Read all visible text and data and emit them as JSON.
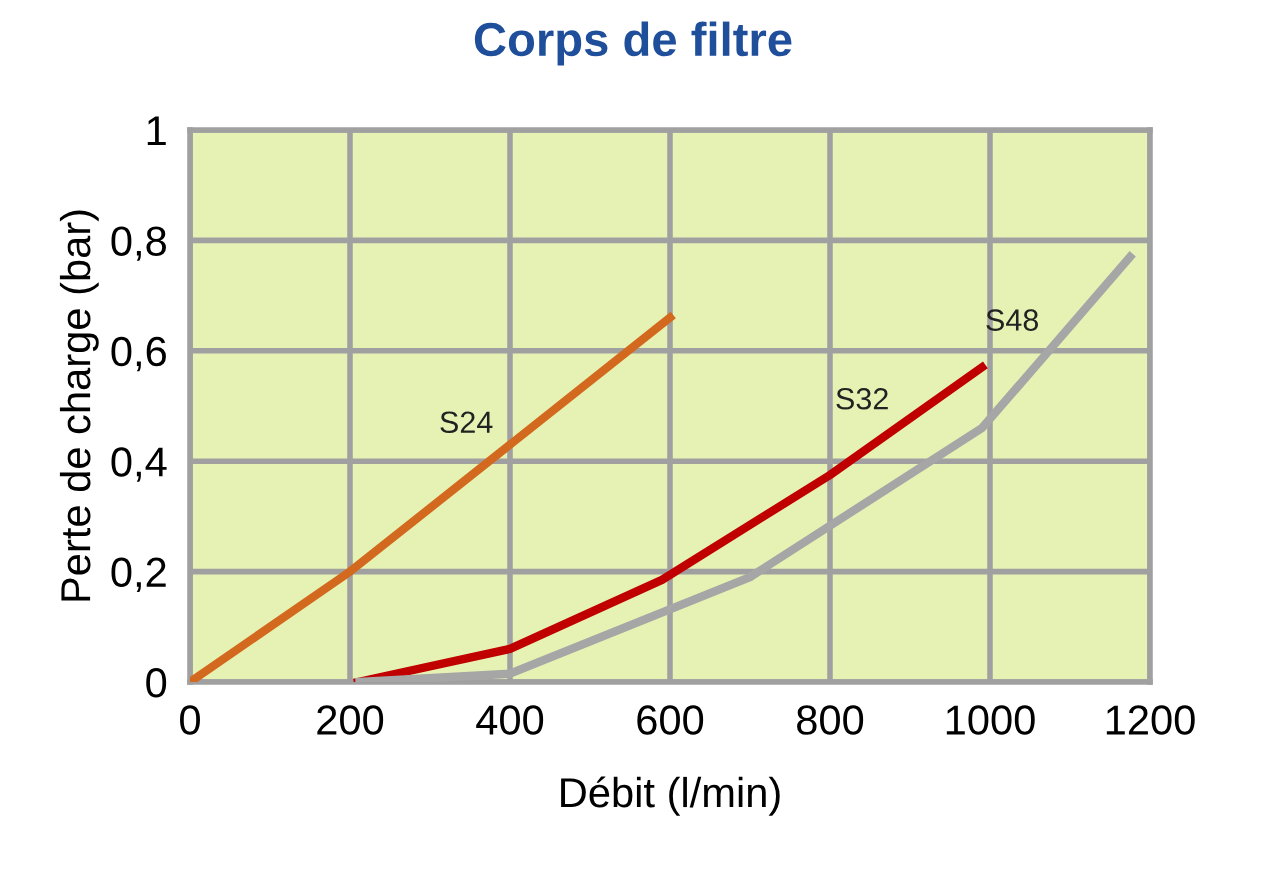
{
  "chart_data": {
    "type": "line",
    "title": "Corps de filtre",
    "xlabel": "Débit (l/min)",
    "ylabel": "Perte de charge (bar)",
    "series": [
      {
        "name": "S24",
        "color": "#d2691e",
        "x": [
          0,
          200,
          600
        ],
        "values": [
          0,
          0.2,
          0.66
        ]
      },
      {
        "name": "S32",
        "color": "#c00000",
        "x": [
          210,
          400,
          590,
          800,
          990
        ],
        "values": [
          0,
          0.06,
          0.185,
          0.375,
          0.57
        ]
      },
      {
        "name": "S48",
        "color": "#a6a6a6",
        "x": [
          212,
          400,
          700,
          990,
          1175
        ],
        "values": [
          0,
          0.015,
          0.19,
          0.46,
          0.77
        ]
      }
    ],
    "xlim": [
      0,
      1200
    ],
    "xticks": [
      0,
      200,
      400,
      600,
      800,
      1000,
      1200
    ],
    "ylim": [
      0,
      1
    ],
    "yticks": [
      0,
      {
        "value": 0.2,
        "label": "0,2"
      },
      {
        "value": 0.4,
        "label": "0,4"
      },
      {
        "value": 0.6,
        "label": "0,6"
      },
      {
        "value": 0.8,
        "label": "0,8"
      },
      1
    ],
    "grid": true,
    "legend": false,
    "marker": "none",
    "line_style": "solid"
  }
}
